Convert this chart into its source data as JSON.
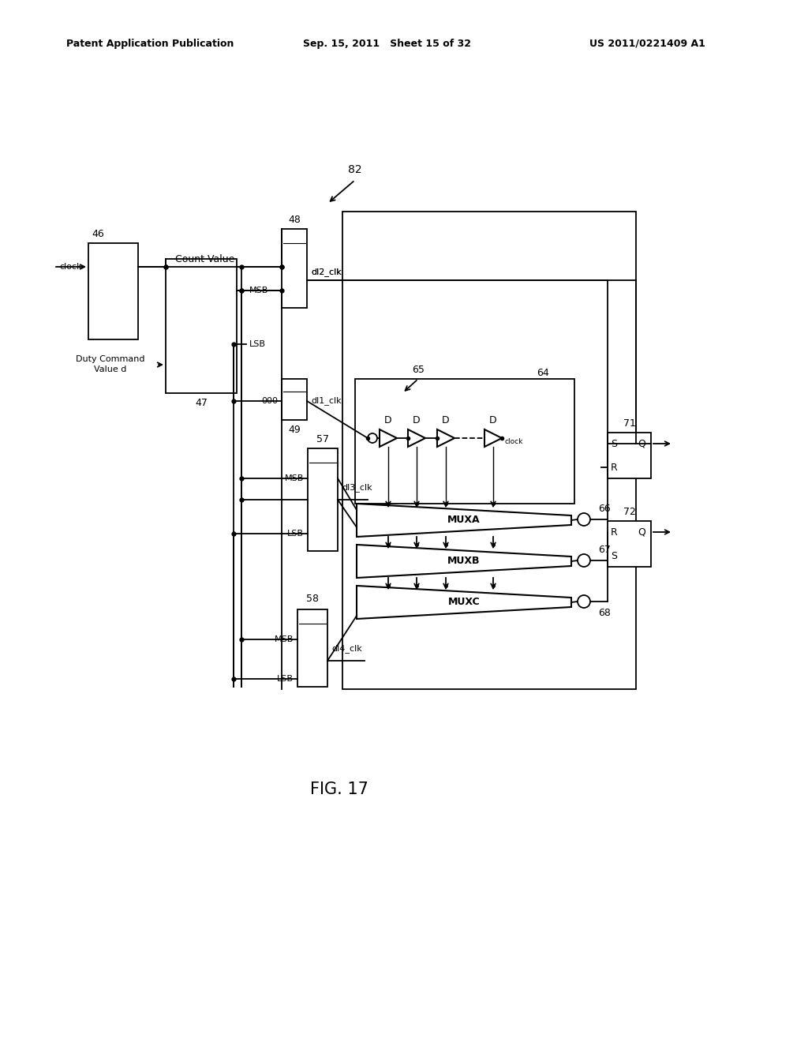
{
  "bg": "#ffffff",
  "lc": "#000000",
  "header_left": "Patent Application Publication",
  "header_center": "Sep. 15, 2011   Sheet 15 of 32",
  "header_right": "US 2011/0221409 A1",
  "fig_label": "FIG. 17"
}
